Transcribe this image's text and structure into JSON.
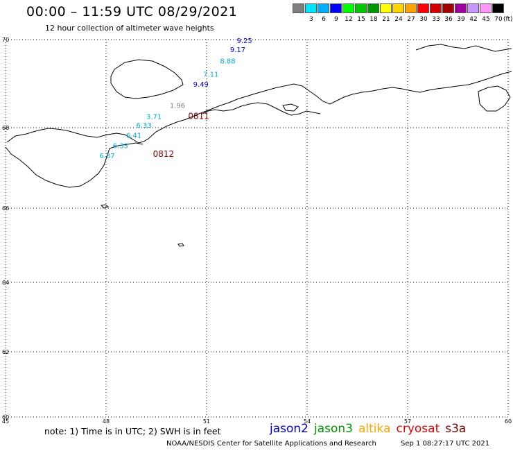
{
  "header": {
    "title": "00:00 – 11:59 UTC 08/29/2021",
    "subtitle": "12 hour collection of altimeter wave heights"
  },
  "scale": {
    "unit": "(ft)",
    "bins": [
      {
        "label": "",
        "color": "#7f7f7f"
      },
      {
        "label": "3",
        "color": "#00e5ff"
      },
      {
        "label": "6",
        "color": "#00b0ff"
      },
      {
        "label": "9",
        "color": "#0000ff"
      },
      {
        "label": "12",
        "color": "#00ff00"
      },
      {
        "label": "15",
        "color": "#00c800"
      },
      {
        "label": "18",
        "color": "#009600"
      },
      {
        "label": "21",
        "color": "#ffff00"
      },
      {
        "label": "24",
        "color": "#ffd400"
      },
      {
        "label": "27",
        "color": "#ffa500"
      },
      {
        "label": "30",
        "color": "#ff0000"
      },
      {
        "label": "33",
        "color": "#d20000"
      },
      {
        "label": "36",
        "color": "#a00000"
      },
      {
        "label": "39",
        "color": "#a000a0"
      },
      {
        "label": "42",
        "color": "#c896ff"
      },
      {
        "label": "45",
        "color": "#ff96ff"
      },
      {
        "label": "70",
        "color": "#000000"
      }
    ]
  },
  "map": {
    "lat_labels": [
      "70",
      "68",
      "66",
      "64",
      "62",
      "60"
    ],
    "lon_labels": [
      "45",
      "48",
      "51",
      "54",
      "57",
      "60"
    ],
    "observations": [
      {
        "value": "9.25",
        "lon": 51.9,
        "lat": 69.92,
        "color": "#0000cc"
      },
      {
        "value": "9.17",
        "lon": 51.7,
        "lat": 69.72,
        "color": "#0000cc"
      },
      {
        "value": "8.88",
        "lon": 51.4,
        "lat": 69.46,
        "color": "#00aad4"
      },
      {
        "value": "7.11",
        "lon": 50.9,
        "lat": 69.16,
        "color": "#00aad4"
      },
      {
        "value": "9.49",
        "lon": 50.6,
        "lat": 68.93,
        "color": "#0000cc"
      },
      {
        "value": "1.96",
        "lon": 49.9,
        "lat": 68.45,
        "color": "#808080"
      },
      {
        "value": "3.71",
        "lon": 49.2,
        "lat": 68.2,
        "color": "#00aad4"
      },
      {
        "value": "6.33",
        "lon": 48.9,
        "lat": 68.0,
        "color": "#00aad4"
      },
      {
        "value": "6.41",
        "lon": 48.6,
        "lat": 67.75,
        "color": "#00aad4"
      },
      {
        "value": "6.33",
        "lon": 48.2,
        "lat": 67.49,
        "color": "#00aad4"
      },
      {
        "value": "6.37",
        "lon": 47.8,
        "lat": 67.24,
        "color": "#00aad4"
      }
    ],
    "passes": [
      {
        "label": "0811",
        "lon": 50.45,
        "lat": 68.2,
        "color": "#800000"
      },
      {
        "label": "0812",
        "lon": 49.4,
        "lat": 67.28,
        "color": "#800000"
      }
    ]
  },
  "footer": {
    "note": "note:  1) Time is in UTC;  2) SWH is in feet",
    "legend": [
      {
        "name": "jason2",
        "color": "#0000cc"
      },
      {
        "name": "jason3",
        "color": "#009600"
      },
      {
        "name": "altika",
        "color": "#ffa500"
      },
      {
        "name": "cryosat",
        "color": "#e00000"
      },
      {
        "name": "s3a",
        "color": "#800000"
      }
    ],
    "credit": "NOAA/NESDIS Center for Satellite Applications and Research",
    "timestamp": "Sep  1 08:27:17 UTC 2021"
  }
}
